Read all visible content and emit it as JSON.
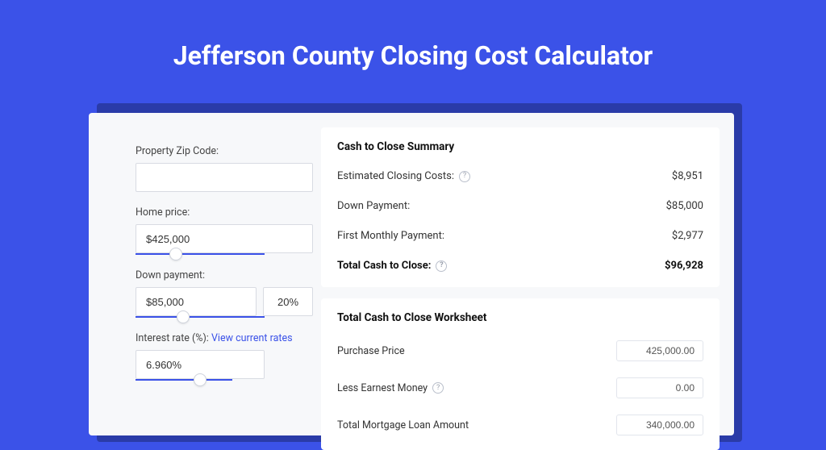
{
  "colors": {
    "page_bg": "#3b52e8",
    "panel_bg": "#f7f8fa",
    "card_bg": "#ffffff",
    "shadow": "#2a3ba8",
    "text": "#333333",
    "text_strong": "#111111",
    "border": "#d8dbe2",
    "accent": "#3b52e8",
    "help_border": "#b9bfcb"
  },
  "title": "Jefferson County Closing Cost Calculator",
  "form": {
    "zip_label": "Property Zip Code:",
    "zip_value": "",
    "home_price_label": "Home price:",
    "home_price_value": "$425,000",
    "home_price_slider_pct": 26,
    "down_payment_label": "Down payment:",
    "down_payment_value": "$85,000",
    "down_payment_pct": "20%",
    "down_payment_slider_pct": 32,
    "interest_label": "Interest rate (%):",
    "interest_link": "View current rates",
    "interest_value": "6.960%",
    "interest_slider_pct": 60
  },
  "summary": {
    "title": "Cash to Close Summary",
    "rows": [
      {
        "label": "Estimated Closing Costs:",
        "help": true,
        "value": "$8,951",
        "bold": false
      },
      {
        "label": "Down Payment:",
        "help": false,
        "value": "$85,000",
        "bold": false
      },
      {
        "label": "First Monthly Payment:",
        "help": false,
        "value": "$2,977",
        "bold": false
      },
      {
        "label": "Total Cash to Close:",
        "help": true,
        "value": "$96,928",
        "bold": true
      }
    ]
  },
  "worksheet": {
    "title": "Total Cash to Close Worksheet",
    "rows": [
      {
        "label": "Purchase Price",
        "help": false,
        "value": "425,000.00"
      },
      {
        "label": "Less Earnest Money",
        "help": true,
        "value": "0.00"
      },
      {
        "label": "Total Mortgage Loan Amount",
        "help": false,
        "value": "340,000.00"
      }
    ]
  }
}
